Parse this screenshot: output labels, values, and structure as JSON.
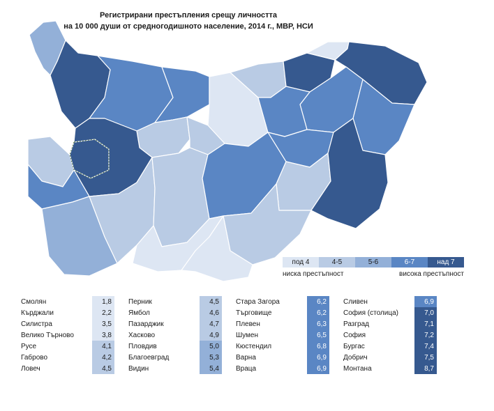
{
  "title_line1": "Регистрирани престъпления срещу личността",
  "title_line2": "на 10 000 души от средногодишното население, 2014 г., МВР, НСИ",
  "colors": {
    "under_4": "#dde6f3",
    "4_5": "#b9cbe4",
    "5_6": "#93b0d8",
    "6_7": "#5a86c4",
    "over_7": "#36598f",
    "border": "#ffffff",
    "outline": "#8aa0c0",
    "province_border": "#a5633a"
  },
  "legend": {
    "bins": [
      "под 4",
      "4-5",
      "5-6",
      "6-7",
      "над 7"
    ],
    "low_label": "ниска престъпност",
    "high_label": "висока престъпност"
  },
  "table": [
    [
      {
        "name": "Смолян",
        "value": "1,8"
      },
      {
        "name": "Кърджали",
        "value": "2,2"
      },
      {
        "name": "Силистра",
        "value": "3,5"
      },
      {
        "name": "Велико Търново",
        "value": "3,8"
      },
      {
        "name": "Русе",
        "value": "4,1"
      },
      {
        "name": "Габрово",
        "value": "4,2"
      },
      {
        "name": "Ловеч",
        "value": "4,5"
      }
    ],
    [
      {
        "name": "Перник",
        "value": "4,5"
      },
      {
        "name": "Ямбол",
        "value": "4,6"
      },
      {
        "name": "Пазарджик",
        "value": "4,7"
      },
      {
        "name": "Хасково",
        "value": "4,9"
      },
      {
        "name": "Пловдив",
        "value": "5,0"
      },
      {
        "name": "Благоевград",
        "value": "5,3"
      },
      {
        "name": "Видин",
        "value": "5,4"
      }
    ],
    [
      {
        "name": "Стара Загора",
        "value": "6,2"
      },
      {
        "name": "Търговище",
        "value": "6,2"
      },
      {
        "name": "Плевен",
        "value": "6,3"
      },
      {
        "name": "Шумен",
        "value": "6,5"
      },
      {
        "name": "Кюстендил",
        "value": "6,8"
      },
      {
        "name": "Варна",
        "value": "6,9"
      },
      {
        "name": "Враца",
        "value": "6,9"
      }
    ],
    [
      {
        "name": "Сливен",
        "value": "6,9"
      },
      {
        "name": "София (столица)",
        "value": "7,0"
      },
      {
        "name": "Разград",
        "value": "7,1"
      },
      {
        "name": "София",
        "value": "7,2"
      },
      {
        "name": "Бургас",
        "value": "7,4"
      },
      {
        "name": "Добрич",
        "value": "7,5"
      },
      {
        "name": "Монтана",
        "value": "8,7"
      }
    ]
  ]
}
